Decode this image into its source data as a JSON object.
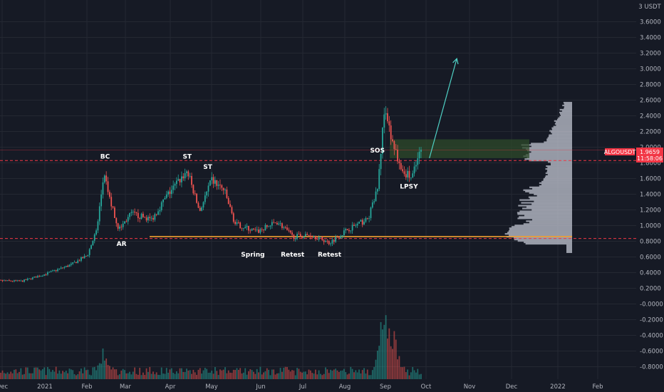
{
  "chart_data": {
    "type": "candlestick",
    "symbol": "ALGOUSDT",
    "currency": "USDT",
    "price_axis_header": "3 USDT",
    "price_ticks": [
      3.6,
      3.4,
      3.2,
      3.0,
      2.8,
      2.6,
      2.4,
      2.2,
      2.0,
      1.8,
      1.6,
      1.4,
      1.2,
      1.0,
      0.8,
      0.6,
      0.4,
      0.2,
      -0.0,
      -0.2,
      -0.4,
      -0.6,
      -0.8
    ],
    "price_tick_labels": [
      "3.6000",
      "3.4000",
      "3.2000",
      "3.0000",
      "2.8000",
      "2.6000",
      "2.4000",
      "2.2000",
      "2.0000",
      "1.8000",
      "1.6000",
      "1.4000",
      "1.2000",
      "1.0000",
      "0.8000",
      "0.6000",
      "0.4000",
      "0.2000",
      "-0.0000",
      "-0.2000",
      "-0.4000",
      "-0.6000",
      "-0.8000"
    ],
    "ylim": [
      -0.9,
      3.9
    ],
    "x_ticks": [
      "Dec",
      "2021",
      "Feb",
      "Mar",
      "Apr",
      "May",
      "Jun",
      "Jul",
      "Aug",
      "Sep",
      "Oct",
      "Nov",
      "Dec",
      "2022",
      "Feb"
    ],
    "last_price": {
      "symbol": "ALGOUSDT",
      "value": "1.9659",
      "countdown": "11:58:06",
      "color": "#f23645"
    },
    "colors": {
      "up": "#26a69a",
      "down": "#ef5350",
      "background": "#161a25",
      "grid": "#242832",
      "support_line": "#f0a030",
      "dashed_level": "#f23645",
      "arrow": "#4fd1c5",
      "zone": "#2d4a2a",
      "volume_profile": "#b8bcc8"
    },
    "key_levels": [
      {
        "price": 1.83,
        "style": "dashed-red"
      },
      {
        "price": 0.835,
        "style": "dashed-red"
      },
      {
        "price": 0.86,
        "style": "solid-orange"
      }
    ],
    "annotations": [
      {
        "text": "BC",
        "date": "Feb 14",
        "price": 1.88
      },
      {
        "text": "AR",
        "date": "Feb 26",
        "price": 0.77
      },
      {
        "text": "ST",
        "date": "Apr 15",
        "price": 1.88
      },
      {
        "text": "ST",
        "date": "Apr 30",
        "price": 1.75
      },
      {
        "text": "Spring",
        "date": "Jun 2",
        "price": 0.63
      },
      {
        "text": "Retest",
        "date": "Jul 1",
        "price": 0.63
      },
      {
        "text": "Retest",
        "date": "Jul 28",
        "price": 0.63
      },
      {
        "text": "SOS",
        "date": "Sep 1",
        "price": 1.96
      },
      {
        "text": "LPSY",
        "date": "Sep 24",
        "price": 1.5
      }
    ],
    "demand_zone": {
      "from": "Sep 10",
      "to": "Dec 21",
      "price_low": 1.86,
      "price_high": 2.1
    },
    "projection_arrow": {
      "from_date": "Oct 9",
      "from_price": 1.86,
      "to_date": "Oct 29",
      "to_price": 3.13
    },
    "price_path": [
      {
        "date": "Nov 20",
        "price": 0.3
      },
      {
        "date": "Dec 15",
        "price": 0.29
      },
      {
        "date": "Jan 1",
        "price": 0.38
      },
      {
        "date": "Jan 20",
        "price": 0.5
      },
      {
        "date": "Feb 1",
        "price": 0.62
      },
      {
        "date": "Feb 8",
        "price": 0.95
      },
      {
        "date": "Feb 13",
        "price": 1.65
      },
      {
        "date": "Feb 18",
        "price": 1.3
      },
      {
        "date": "Feb 24",
        "price": 0.95
      },
      {
        "date": "Mar 5",
        "price": 1.15
      },
      {
        "date": "Mar 20",
        "price": 1.08
      },
      {
        "date": "Apr 1",
        "price": 1.4
      },
      {
        "date": "Apr 15",
        "price": 1.7
      },
      {
        "date": "Apr 24",
        "price": 1.18
      },
      {
        "date": "May 3",
        "price": 1.58
      },
      {
        "date": "May 12",
        "price": 1.45
      },
      {
        "date": "May 20",
        "price": 1.02
      },
      {
        "date": "Jun 5",
        "price": 0.92
      },
      {
        "date": "Jun 20",
        "price": 1.05
      },
      {
        "date": "Jul 1",
        "price": 0.86
      },
      {
        "date": "Jul 15",
        "price": 0.88
      },
      {
        "date": "Jul 28",
        "price": 0.78
      },
      {
        "date": "Aug 10",
        "price": 0.95
      },
      {
        "date": "Aug 25",
        "price": 1.08
      },
      {
        "date": "Sep 1",
        "price": 1.45
      },
      {
        "date": "Sep 6",
        "price": 2.45
      },
      {
        "date": "Sep 12",
        "price": 2.05
      },
      {
        "date": "Sep 20",
        "price": 1.7
      },
      {
        "date": "Sep 26",
        "price": 1.6
      },
      {
        "date": "Oct 3",
        "price": 1.97
      }
    ],
    "volume_bursts": [
      {
        "date": "Sep 6",
        "level": 1.0
      },
      {
        "date": "Feb 13",
        "level": 0.35
      },
      {
        "date": "Sep 13",
        "level": 0.55
      }
    ]
  }
}
